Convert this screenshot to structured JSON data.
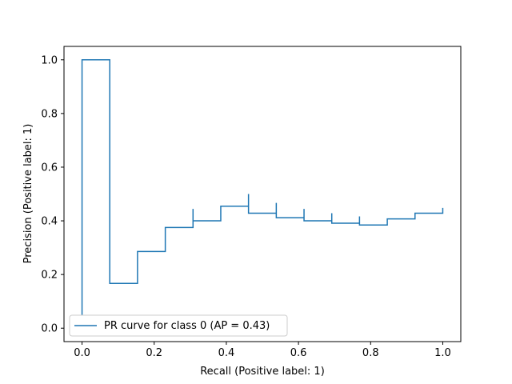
{
  "chart_data": {
    "type": "line",
    "title": "",
    "xlabel": "Recall (Positive label: 1)",
    "ylabel": "Precision (Positive label: 1)",
    "xlim": [
      -0.05,
      1.05
    ],
    "ylim": [
      -0.05,
      1.05
    ],
    "xticks": [
      0.0,
      0.2,
      0.4,
      0.6,
      0.8,
      1.0
    ],
    "xtick_labels": [
      "0.0",
      "0.2",
      "0.4",
      "0.6",
      "0.8",
      "1.0"
    ],
    "yticks": [
      0.0,
      0.2,
      0.4,
      0.6,
      0.8,
      1.0
    ],
    "ytick_labels": [
      "0.0",
      "0.2",
      "0.4",
      "0.6",
      "0.8",
      "1.0"
    ],
    "grid": false,
    "legend_position": "lower-left",
    "series": [
      {
        "name": "PR curve for class 0 (AP = 0.43)",
        "color": "#1f77b4",
        "drawstyle": "steps-post",
        "recall": [
          0.0,
          0.0,
          0.0769,
          0.0769,
          0.1538,
          0.2308,
          0.3077,
          0.3077,
          0.3846,
          0.4615,
          0.4615,
          0.5385,
          0.5385,
          0.6154,
          0.6154,
          0.6923,
          0.6923,
          0.7692,
          0.7692,
          0.8462,
          0.9231,
          1.0,
          1.0
        ],
        "precision": [
          0.05,
          1.0,
          0.5,
          0.1667,
          0.2857,
          0.375,
          0.4444,
          0.4,
          0.4545,
          0.5,
          0.4286,
          0.4667,
          0.4118,
          0.4444,
          0.4,
          0.4286,
          0.3913,
          0.4167,
          0.3846,
          0.4074,
          0.4286,
          0.4483,
          0.4333
        ]
      }
    ]
  }
}
